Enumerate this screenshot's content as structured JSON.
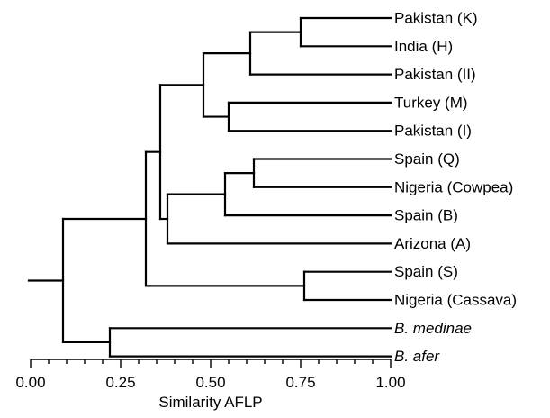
{
  "dendrogram": {
    "axis": {
      "title": "Similarity AFLP",
      "min": 0.0,
      "max": 1.0,
      "tick_labels": [
        "0.00",
        "0.25",
        "0.50",
        "0.75",
        "1.00"
      ],
      "major_ticks": [
        0.0,
        0.25,
        0.5,
        0.75,
        1.0
      ],
      "minor_step": 0.05
    },
    "leaves": [
      {
        "id": "L1",
        "label": "Pakistan (K)",
        "italic": false
      },
      {
        "id": "L2",
        "label": "India (H)",
        "italic": false
      },
      {
        "id": "L3",
        "label": "Pakistan (II)",
        "italic": false
      },
      {
        "id": "L4",
        "label": "Turkey (M)",
        "italic": false
      },
      {
        "id": "L5",
        "label": "Pakistan (I)",
        "italic": false
      },
      {
        "id": "L6",
        "label": "Spain (Q)",
        "italic": false
      },
      {
        "id": "L7",
        "label": "Nigeria (Cowpea)",
        "italic": false
      },
      {
        "id": "L8",
        "label": "Spain (B)",
        "italic": false
      },
      {
        "id": "L9",
        "label": "Arizona (A)",
        "italic": false
      },
      {
        "id": "L10",
        "label": "Spain (S)",
        "italic": false
      },
      {
        "id": "L11",
        "label": "Nigeria (Cassava)",
        "italic": false
      },
      {
        "id": "L12",
        "label": "B. medinae",
        "italic": true
      },
      {
        "id": "L13",
        "label": "B. afer",
        "italic": true
      }
    ],
    "clusters": [
      {
        "id": "c1",
        "children": [
          "L1",
          "L2"
        ],
        "similarity": 0.75
      },
      {
        "id": "c2",
        "children": [
          "c1",
          "L3"
        ],
        "similarity": 0.61
      },
      {
        "id": "c3",
        "children": [
          "L4",
          "L5"
        ],
        "similarity": 0.55
      },
      {
        "id": "c4",
        "children": [
          "c2",
          "c3"
        ],
        "similarity": 0.48
      },
      {
        "id": "c5",
        "children": [
          "L6",
          "L7"
        ],
        "similarity": 0.62
      },
      {
        "id": "c6",
        "children": [
          "c5",
          "L8"
        ],
        "similarity": 0.54
      },
      {
        "id": "c7",
        "children": [
          "c6",
          "L9"
        ],
        "similarity": 0.38
      },
      {
        "id": "c8",
        "children": [
          "c4",
          "c7"
        ],
        "similarity": 0.36
      },
      {
        "id": "c9",
        "children": [
          "L10",
          "L11"
        ],
        "similarity": 0.76
      },
      {
        "id": "c10",
        "children": [
          "c8",
          "c9"
        ],
        "similarity": 0.32
      },
      {
        "id": "c11",
        "children": [
          "L12",
          "L13"
        ],
        "similarity": 0.22
      },
      {
        "id": "c12",
        "children": [
          "c10",
          "c11"
        ],
        "similarity": 0.09
      }
    ],
    "root": "c12"
  }
}
